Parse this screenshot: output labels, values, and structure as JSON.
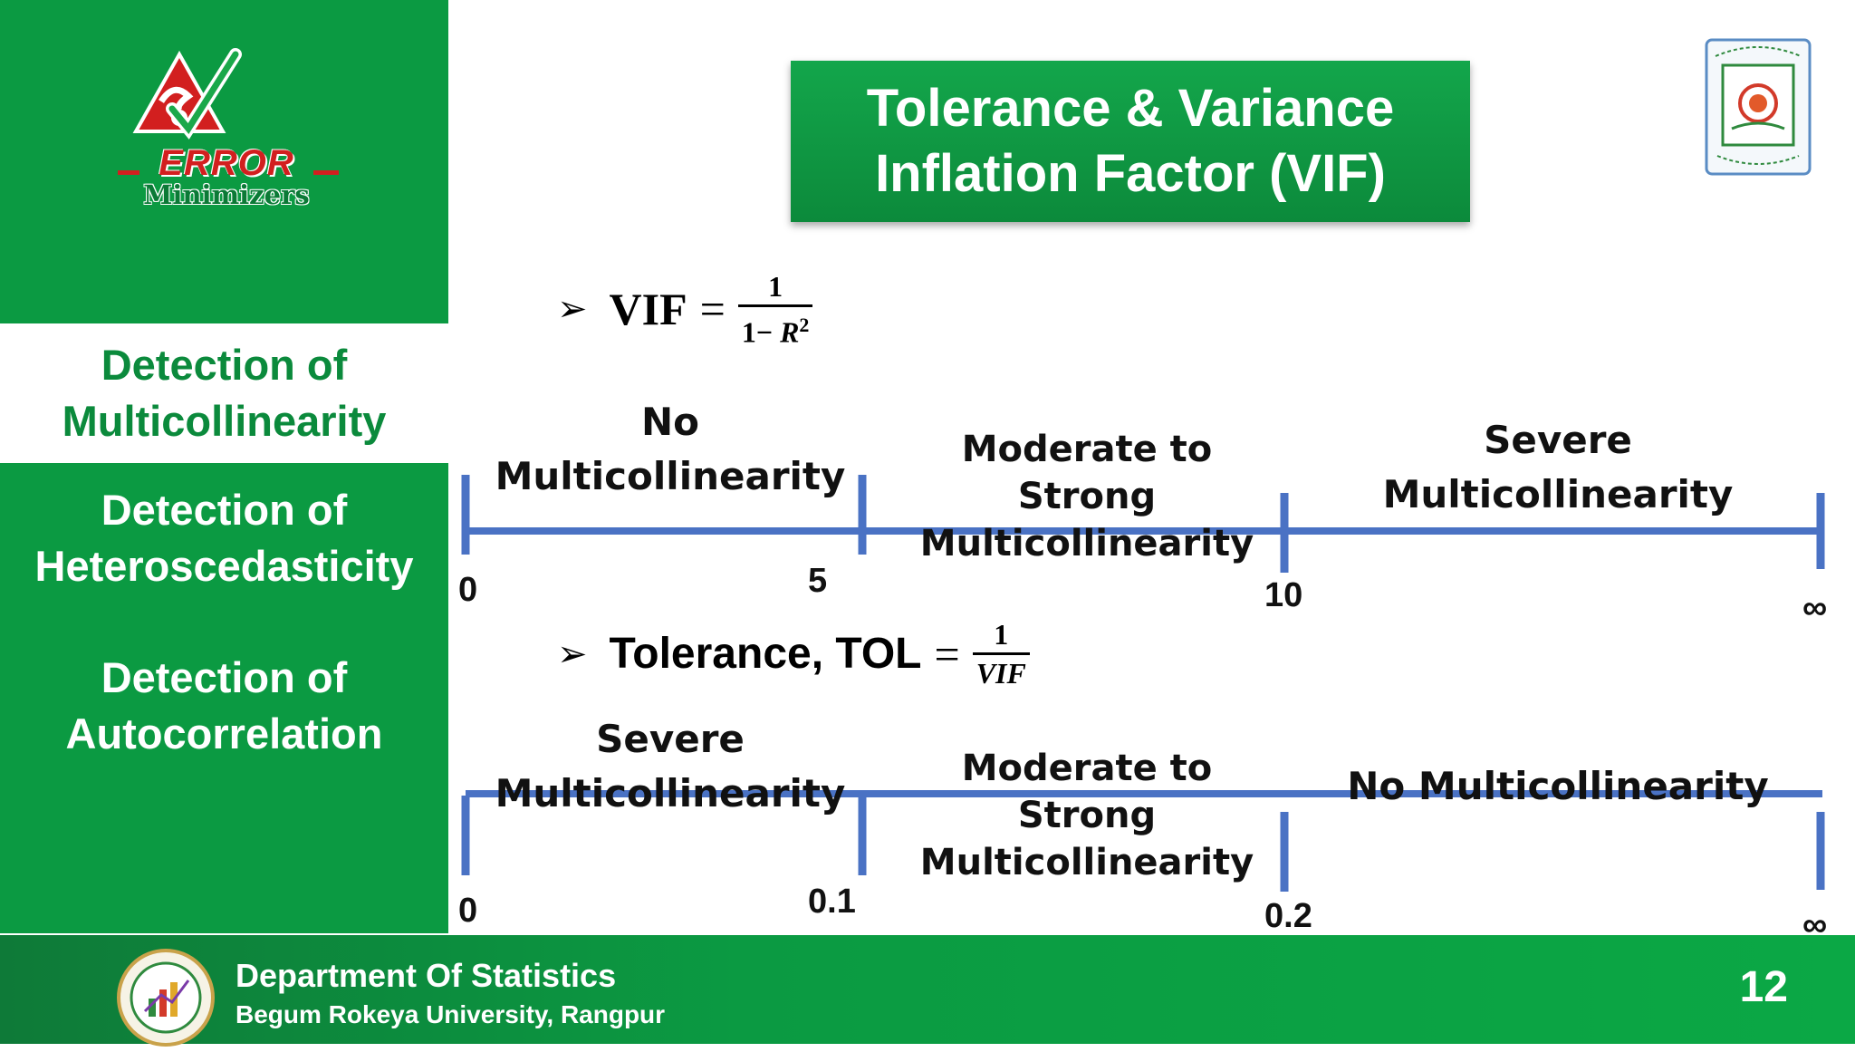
{
  "colors": {
    "green": "#0b9a42",
    "dark_green_text": "#0b8a3c",
    "axis_blue": "#4a72c4"
  },
  "logo": {
    "icon": "error-minimizers-logo",
    "line1": "ERROR",
    "line2": "Minimizers"
  },
  "sidebar": {
    "items": [
      {
        "label": "Detection of\nMulticollinearity",
        "active": true
      },
      {
        "label": "Detection of\nHeteroscedasticity",
        "active": false
      },
      {
        "label": "Detection of\nAutocorrelation",
        "active": false
      }
    ]
  },
  "title": "Tolerance & Variance\nInflation Factor (VIF)",
  "seal": {
    "icon": "university-seal-icon"
  },
  "vif": {
    "lhs": "VIF",
    "eq": "=",
    "numerator": "1",
    "denominator_prefix": "1− ",
    "denominator_var": "R",
    "denominator_exp": "2",
    "segments": [
      "No\nMulticollinearity",
      "Moderate to Strong\nMulticollinearity",
      "Severe\nMulticollinearity"
    ],
    "ticks": [
      "0",
      "5",
      "10",
      "∞"
    ]
  },
  "tol": {
    "lhs": "Tolerance, TOL",
    "eq": "=",
    "numerator": "1",
    "denominator": "VIF",
    "segments": [
      "Severe\nMulticollinearity",
      "Moderate to Strong\nMulticollinearity",
      "No Multicollinearity"
    ],
    "ticks": [
      "0",
      "0.1",
      "0.2",
      "∞"
    ]
  },
  "footer": {
    "dept": "Department Of Statistics",
    "university": "Begum Rokeya University, Rangpur",
    "page": "12",
    "logo_icon": "department-logo"
  }
}
